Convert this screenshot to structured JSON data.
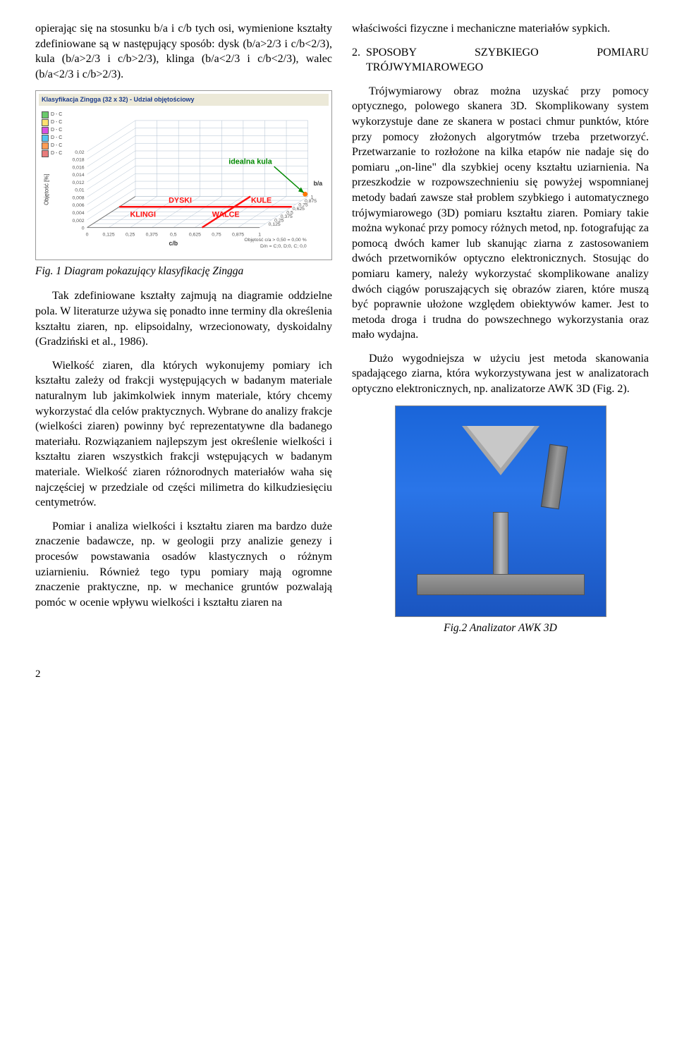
{
  "left": {
    "intro": "opierając się na stosunku b/a i c/b tych osi, wymienione kształty zdefiniowane są w następujący sposób: dysk (b/a>2/3 i c/b<2/3), kula (b/a>2/3 i c/b>2/3), klinga (b/a<2/3 i c/b<2/3), walec (b/a<2/3 i c/b>2/3).",
    "fig1_caption": "Fig. 1 Diagram pokazujący klasyfikację Zingga",
    "p1": "Tak zdefiniowane kształty zajmują na diagramie oddzielne pola. W literaturze używa się ponadto inne terminy dla określenia kształtu ziaren, np. elipsoidalny, wrzecionowaty, dyskoidalny (Gradziński et al., 1986).",
    "p2": "Wielkość ziaren, dla których wykonujemy pomiary ich kształtu zależy od frakcji występujących w badanym materiale naturalnym lub jakimkolwiek innym materiale, który chcemy wykorzystać dla celów praktycznych. Wybrane do analizy frakcje (wielkości ziaren) powinny być reprezentatywne dla badanego materiału. Rozwiązaniem najlepszym jest określenie wielkości i kształtu ziaren wszystkich frakcji wstępujących w badanym materiale. Wielkość ziaren różnorodnych materiałów waha się najczęściej w przedziale od części milimetra do kilkudziesięciu centymetrów.",
    "p3": "Pomiar i analiza wielkości i kształtu ziaren ma bardzo duże znaczenie badawcze, np. w geologii przy analizie genezy i procesów powstawania osadów klastycznych o różnym uziarnieniu. Również tego typu pomiary mają ogromne znaczenie praktyczne, np. w mechanice gruntów pozwalają pomóc w ocenie wpływu wielkości i kształtu ziaren na"
  },
  "right": {
    "cont": "właściwości fizyczne i mechaniczne materiałów sypkich.",
    "sec_num": "2.",
    "sec_title": "SPOSOBY SZYBKIEGO POMIARU TRÓJWYMIAROWEGO",
    "p1": "Trójwymiarowy obraz można uzyskać przy pomocy optycznego, polowego skanera 3D. Skomplikowany system wykorzystuje dane ze skanera w postaci chmur punktów, które przy pomocy złożonych algorytmów trzeba przetworzyć. Przetwarzanie to rozłożone na kilka etapów nie nadaje się do pomiaru „on-line\" dla szybkiej oceny kształtu uziarnienia. Na przeszkodzie w rozpowszechnieniu się powyżej wspomnianej metody badań zawsze stał problem szybkiego i automatycznego trójwymiarowego (3D) pomiaru kształtu ziaren. Pomiary takie można wykonać przy pomocy różnych metod, np. fotografując za pomocą dwóch kamer lub skanując ziarna z zastosowaniem dwóch przetworników optyczno elektronicznych. Stosując do pomiaru kamery, należy wykorzystać skomplikowane analizy dwóch ciągów poruszających się obrazów ziaren, które muszą być poprawnie ułożone względem obiektywów kamer. Jest to metoda droga i trudna do powszechnego wykorzystania oraz mało wydajna.",
    "p2": "Dużo wygodniejsza w użyciu jest metoda skanowania spadającego ziarna, która wykorzystywana jest w analizatorach optyczno elektronicznych, np. analizatorze AWK 3D (Fig. 2).",
    "fig2_caption": "Fig.2 Analizator AWK 3D"
  },
  "diagram": {
    "title": "Klasyfikacja Zingga (32 x 32) - Udział objętościowy",
    "x_label": "c/b",
    "y_label": "Objętość [%]",
    "x_ticks": [
      "0",
      "0,125",
      "0,25",
      "0,375",
      "0,5",
      "0,625",
      "0,75",
      "0,875",
      "1"
    ],
    "y_ticks": [
      "0,02",
      "0,018",
      "0,016",
      "0,014",
      "0,012",
      "0,01",
      "0,008",
      "0,006",
      "0,004",
      "0,002",
      "0"
    ],
    "z_ticks": [
      "0,125",
      "0,25",
      "0,375",
      "0,5",
      "0,625",
      "0,75",
      "0,875",
      "1"
    ],
    "z_label": "b/a",
    "quadrants": [
      "DYSKI",
      "KULE",
      "KLINGI",
      "WALCE"
    ],
    "ideal_label": "idealna kula",
    "footer": "Objętość c/a > 0,50 = 0,00 %\\nD/n = C;0, D;0, C; 0,0",
    "legend_items": [
      "D - C",
      "D - C",
      "D - C",
      "D - C",
      "D - C",
      "D - C"
    ],
    "legend_colors": [
      "#6bca6b",
      "#ffe070",
      "#d94fe3",
      "#55c3f0",
      "#ff9c55",
      "#e87c7c"
    ],
    "grid_color": "#b0c0d0",
    "cross_color": "#ff1010",
    "ideal_line_color": "#008800",
    "ideal_dot_color": "#ff7700",
    "background": "#ffffff"
  },
  "page_number": "2"
}
